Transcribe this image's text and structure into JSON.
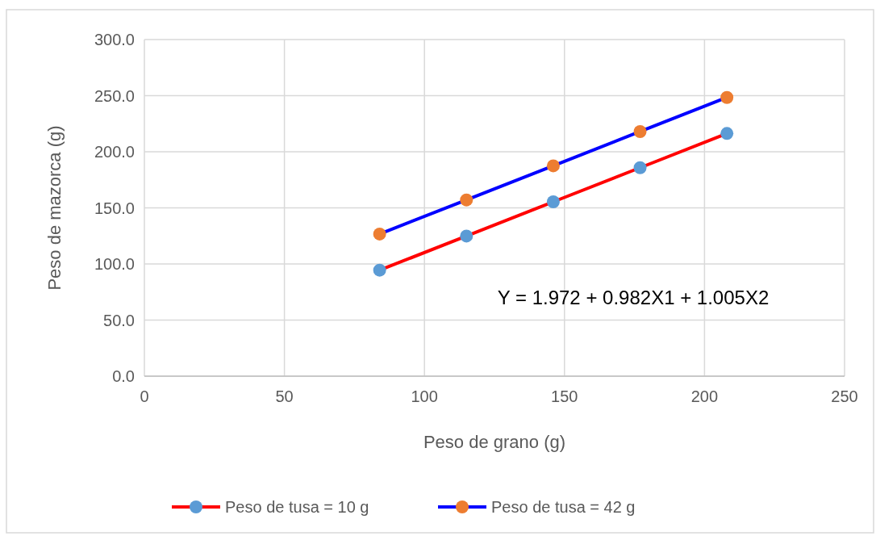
{
  "chart_data": {
    "type": "line",
    "xlabel": "Peso de grano (g)",
    "ylabel": "Peso de mazorca (g)",
    "x": [
      84,
      115,
      146,
      177,
      208
    ],
    "series": [
      {
        "name": "Peso de tusa = 10 g",
        "color": "#ff0000",
        "colors": [
          "#5b9bd5",
          "#5b9bd5",
          "#5b9bd5",
          "#5b9bd5",
          "#5b9bd5"
        ],
        "values": [
          94.5,
          124.9,
          155.4,
          185.8,
          216.3
        ]
      },
      {
        "name": "Peso de tusa = 42 g",
        "color": "#0000ff",
        "colors": [
          "#ed7d31",
          "#ed7d31",
          "#ed7d31",
          "#ed7d31",
          "#ed7d31"
        ],
        "values": [
          126.7,
          157.1,
          187.5,
          218.0,
          248.4
        ]
      }
    ],
    "xlim": [
      0,
      250
    ],
    "xticks": [
      0,
      50,
      100,
      150,
      200,
      250
    ],
    "ylim": [
      0,
      300
    ],
    "yticks": [
      {
        "value": 0,
        "label": "0.0"
      },
      {
        "value": 50,
        "label": "50.0"
      },
      {
        "value": 100,
        "label": "100.0"
      },
      {
        "value": 150,
        "label": "150.0"
      },
      {
        "value": 200,
        "label": "200.0"
      },
      {
        "value": 250,
        "label": "250.0"
      },
      {
        "value": 300,
        "label": "300.0"
      }
    ],
    "grid": true,
    "legend": "bottom",
    "marker": "circle",
    "line_style": "solid",
    "annotations": [
      "Y = 1.972 + 0.982X1 + 1.005X2"
    ]
  }
}
